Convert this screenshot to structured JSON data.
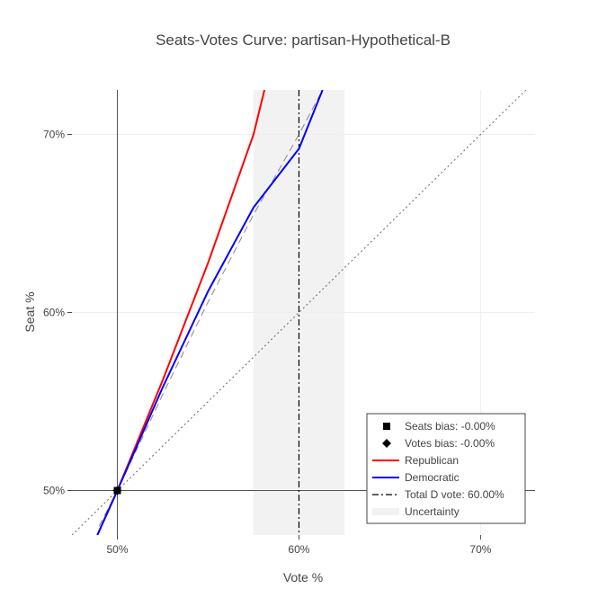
{
  "chart_data": {
    "type": "line",
    "title": "Seats-Votes Curve: partisan-Hypothetical-B",
    "xlabel": "Vote %",
    "ylabel": "Seat %",
    "xlim": [
      47.5,
      73.0
    ],
    "ylim": [
      47.5,
      72.5
    ],
    "x_ticks": [
      50,
      60,
      70
    ],
    "x_tick_labels": [
      "50%",
      "60%",
      "70%"
    ],
    "y_ticks": [
      50,
      60,
      70
    ],
    "y_tick_labels": [
      "50%",
      "60%",
      "70%"
    ],
    "grid": true,
    "legend_position": "bottom-right",
    "uncertainty_band": {
      "x0": 57.5,
      "x1": 62.5,
      "color": "#f2f2f2"
    },
    "total_d_vote": 60.0,
    "series": [
      {
        "name": "Republican",
        "color": "#ff0000",
        "dash": "solid",
        "x": [
          48.9,
          50.0,
          52.5,
          55.0,
          57.5,
          58.1
        ],
        "y": [
          47.5,
          50.0,
          56.2,
          62.8,
          70.0,
          72.5
        ]
      },
      {
        "name": "Democratic",
        "color": "#0000ff",
        "dash": "solid",
        "x": [
          48.9,
          50.0,
          52.5,
          55.0,
          57.5,
          60.0,
          61.3
        ],
        "y": [
          47.5,
          50.0,
          55.8,
          61.2,
          65.9,
          69.2,
          72.5
        ]
      }
    ],
    "reference_lines": [
      {
        "kind": "symmetry",
        "color": "#888888",
        "dash": "dash",
        "x": [
          49.0,
          50.0,
          52.5,
          55.0,
          57.5,
          60.0,
          61.3
        ],
        "y": [
          48.0,
          50.0,
          55.4,
          60.6,
          65.5,
          70.0,
          72.5
        ]
      },
      {
        "kind": "proportional",
        "color": "#666666",
        "dash": "dot",
        "x": [
          47.5,
          72.5
        ],
        "y": [
          47.5,
          72.5
        ]
      }
    ],
    "markers": [
      {
        "name": "Seats bias: -0.00%",
        "symbol": "square",
        "x": 50.0,
        "y": 50.0,
        "color": "#000000"
      },
      {
        "name": "Votes bias: -0.00%",
        "symbol": "diamond",
        "x": 50.0,
        "y": 50.0,
        "color": "#000000"
      }
    ],
    "legend": [
      {
        "label": "Seats bias: -0.00%",
        "swatch": "square",
        "color": "#000000"
      },
      {
        "label": "Votes bias: -0.00%",
        "swatch": "diamond",
        "color": "#000000"
      },
      {
        "label": "Republican",
        "swatch": "line",
        "color": "#ff0000"
      },
      {
        "label": "Democratic",
        "swatch": "line",
        "color": "#0000ff"
      },
      {
        "label": "Total D vote: 60.00%",
        "swatch": "dashdot",
        "color": "#000000"
      },
      {
        "label": "Uncertainty",
        "swatch": "band",
        "color": "#f2f2f2"
      }
    ]
  }
}
